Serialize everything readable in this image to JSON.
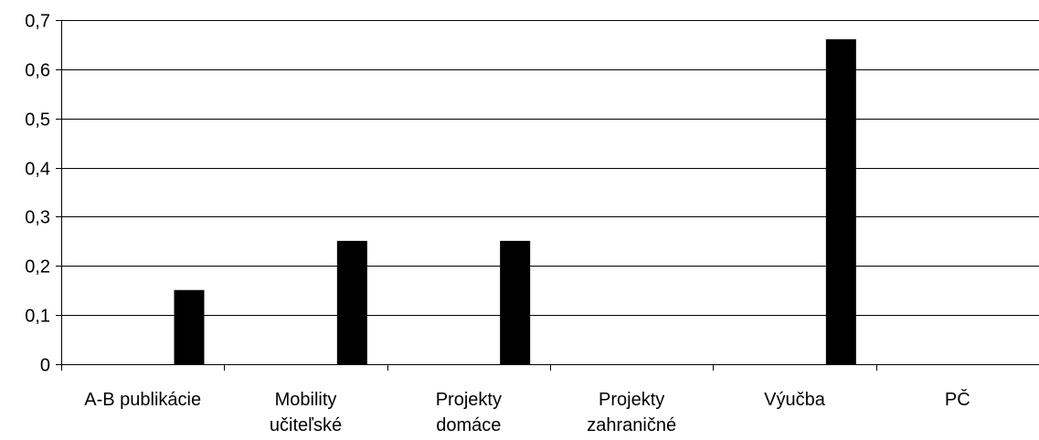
{
  "chart_data": {
    "type": "bar",
    "categories": [
      [
        "A-B publikácie"
      ],
      [
        "Mobility",
        "učiteľské"
      ],
      [
        "Projekty",
        "domáce"
      ],
      [
        "Projekty",
        "zahraničné"
      ],
      [
        "Výučba"
      ],
      [
        "PČ"
      ]
    ],
    "values": [
      0.15,
      0.25,
      0.25,
      0,
      0.66,
      0
    ],
    "title": "",
    "xlabel": "",
    "ylabel": "",
    "ylim": [
      0,
      0.7
    ],
    "yticks": [
      {
        "value": 0,
        "label": "0"
      },
      {
        "value": 0.1,
        "label": "0,1"
      },
      {
        "value": 0.2,
        "label": "0,2"
      },
      {
        "value": 0.3,
        "label": "0,3"
      },
      {
        "value": 0.4,
        "label": "0,4"
      },
      {
        "value": 0.5,
        "label": "0,5"
      },
      {
        "value": 0.6,
        "label": "0,6"
      },
      {
        "value": 0.7,
        "label": "0,7"
      }
    ],
    "grid": "horizontal",
    "legend": "none",
    "bar_color": "#000000"
  }
}
